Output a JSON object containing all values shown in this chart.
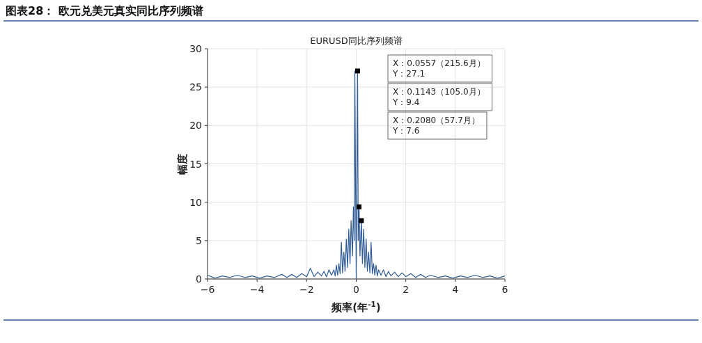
{
  "chart_data": {
    "type": "line",
    "title": "图表28： 欧元兑美元真实同比序列频谱",
    "subtitle": "EURUSD同比序列频谱",
    "xlabel": "频率(年$^{-1}$)",
    "ylabel": "幅度",
    "xlim": [
      -6,
      6
    ],
    "ylim": [
      0,
      30
    ],
    "xticks": [
      -6,
      -4,
      -2,
      0,
      2,
      4,
      6
    ],
    "yticks": [
      0,
      5,
      10,
      15,
      20,
      25,
      30
    ],
    "grid": true,
    "marker": "none",
    "series": [
      {
        "color": "#2f5b96",
        "x": [
          -6.0,
          -5.7,
          -5.4,
          -5.1,
          -4.8,
          -4.5,
          -4.2,
          -3.9,
          -3.6,
          -3.3,
          -3.0,
          -2.8,
          -2.6,
          -2.4,
          -2.2,
          -2.0,
          -1.85,
          -1.7,
          -1.55,
          -1.4,
          -1.3,
          -1.2,
          -1.1,
          -1.0,
          -0.9,
          -0.85,
          -0.8,
          -0.75,
          -0.7,
          -0.65,
          -0.6,
          -0.55,
          -0.5,
          -0.45,
          -0.4,
          -0.35,
          -0.3,
          -0.25,
          -0.208,
          -0.15,
          -0.1143,
          -0.08,
          -0.0557,
          -0.03,
          0,
          0.03,
          0.0557,
          0.08,
          0.1143,
          0.15,
          0.208,
          0.25,
          0.3,
          0.35,
          0.4,
          0.45,
          0.5,
          0.55,
          0.6,
          0.65,
          0.7,
          0.75,
          0.8,
          0.85,
          0.9,
          1.0,
          1.1,
          1.2,
          1.3,
          1.4,
          1.55,
          1.7,
          1.85,
          2.0,
          2.2,
          2.4,
          2.6,
          2.8,
          3.0,
          3.3,
          3.6,
          3.9,
          4.2,
          4.5,
          4.8,
          5.1,
          5.4,
          5.7,
          6.0
        ],
        "values": [
          0.5,
          0.1,
          0.4,
          0.2,
          0.5,
          0.2,
          0.4,
          0.1,
          0.4,
          0.2,
          0.6,
          0.2,
          0.6,
          0.2,
          0.7,
          0.3,
          1.4,
          0.3,
          0.9,
          0.4,
          1.0,
          0.3,
          1.2,
          0.5,
          1.2,
          0.4,
          1.8,
          0.5,
          2.0,
          0.7,
          4.8,
          0.8,
          3.5,
          1.0,
          5.2,
          1.5,
          6.5,
          2.0,
          7.6,
          3.0,
          9.4,
          5.0,
          27.1,
          14.0,
          0,
          14.0,
          27.1,
          5.0,
          9.4,
          3.0,
          7.6,
          2.0,
          6.5,
          1.5,
          5.2,
          1.0,
          3.5,
          0.8,
          4.8,
          0.7,
          2.0,
          0.5,
          1.8,
          0.4,
          1.2,
          0.5,
          1.2,
          0.3,
          1.0,
          0.4,
          0.9,
          0.3,
          0.8,
          0.3,
          0.7,
          0.2,
          0.6,
          0.2,
          0.5,
          0.2,
          0.4,
          0.1,
          0.4,
          0.2,
          0.5,
          0.2,
          0.4,
          0.1,
          0.4
        ]
      },
      {
        "type": "scatter",
        "marker": "square",
        "color": "#000000",
        "x": [
          0.0557,
          0.1143,
          0.208
        ],
        "values": [
          27.1,
          9.4,
          7.6
        ]
      }
    ],
    "annotations": [
      "X：0.0557（215.6月）\nY：27.1",
      "X：0.1143（105.0月）\nY：9.4",
      "X：0.2080（57.7月）\nY：7.6"
    ]
  }
}
